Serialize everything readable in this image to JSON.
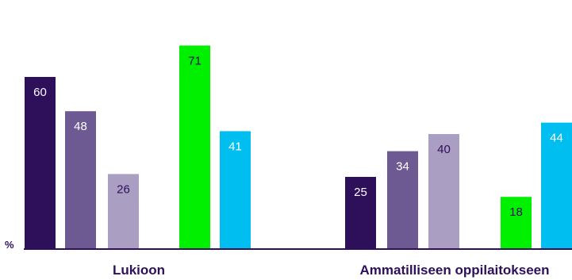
{
  "chart_data": {
    "type": "bar",
    "ylabel": "%",
    "ylim": [
      0,
      75
    ],
    "grid": false,
    "groups": [
      {
        "label": "Lukioon",
        "values": [
          60,
          48,
          26,
          71,
          41
        ],
        "colors": [
          "#2d0f5a",
          "#6d5a93",
          "#ab9ec3",
          "#00f000",
          "#00bef0"
        ],
        "label_colors": [
          "#ffffff",
          "#ffffff",
          "#2d0f5a",
          "#2d0f5a",
          "#ffffff"
        ]
      },
      {
        "label": "Ammatilliseen oppilaitokseen",
        "values": [
          25,
          34,
          40,
          18,
          44
        ],
        "colors": [
          "#2d0f5a",
          "#6d5a93",
          "#ab9ec3",
          "#00f000",
          "#00bef0"
        ],
        "label_colors": [
          "#ffffff",
          "#ffffff",
          "#2d0f5a",
          "#2d0f5a",
          "#ffffff"
        ]
      }
    ]
  }
}
